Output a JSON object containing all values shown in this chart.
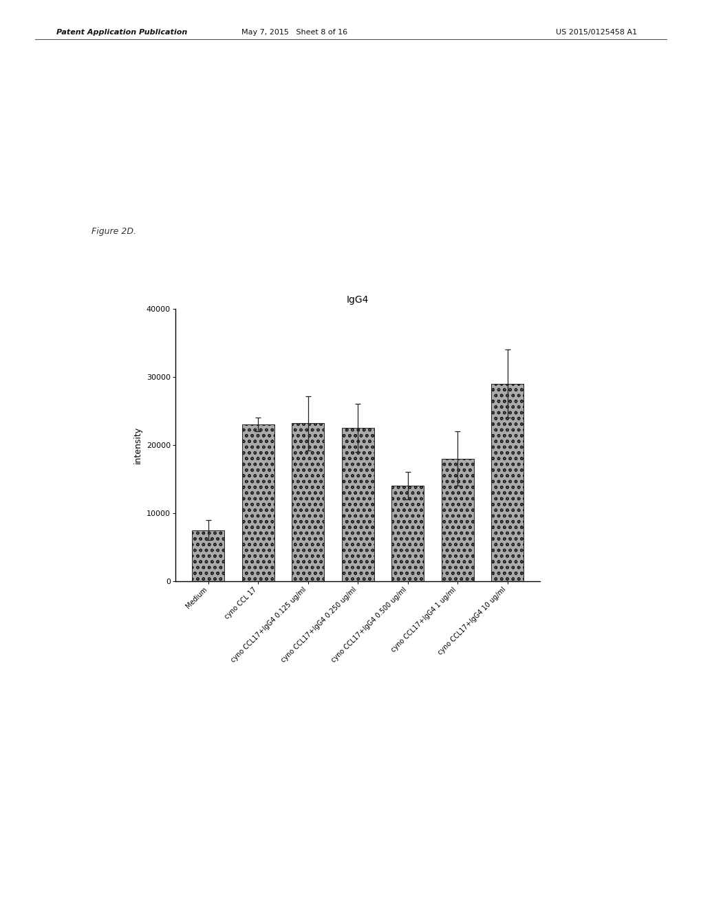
{
  "title": "IgG4",
  "ylabel": "intensity",
  "categories": [
    "Medium",
    "cyno CCL 17",
    "cyno CCL17+IgG4 0.125 ug/ml",
    "cyno CCL17+IgG4 0.250 ug/ml",
    "cyno CCL17+IgG4 0.500 ug/ml",
    "cyno CCL17+IgG4 1 ug/ml",
    "cyno CCL17+IgG4 10 ug/ml"
  ],
  "values": [
    7500,
    23000,
    23200,
    22500,
    14000,
    18000,
    29000
  ],
  "errors": [
    1500,
    1000,
    4000,
    3500,
    2000,
    4000,
    5000
  ],
  "ylim": [
    0,
    40000
  ],
  "yticks": [
    0,
    10000,
    20000,
    30000,
    40000
  ],
  "bar_color": "#aaaaaa",
  "bar_hatch": "oo",
  "figure_bg": "#ffffff",
  "header_left": "Patent Application Publication",
  "header_mid": "May 7, 2015   Sheet 8 of 16",
  "header_right": "US 2015/0125458 A1",
  "figure_label": "Figure 2D.",
  "title_fontsize": 10,
  "ylabel_fontsize": 9,
  "tick_fontsize": 8,
  "label_fontsize": 7
}
